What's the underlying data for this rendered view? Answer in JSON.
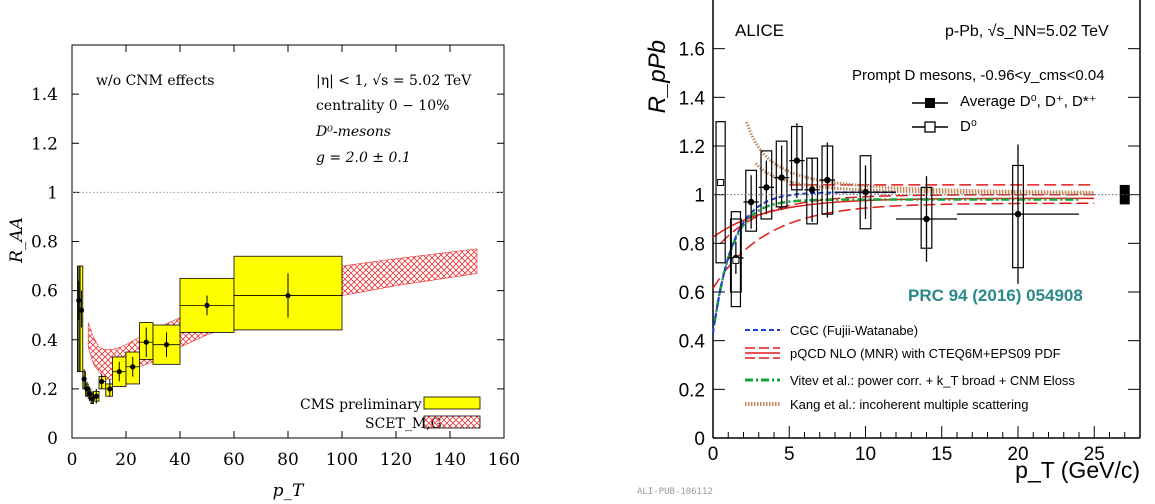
{
  "chart_data": [
    {
      "type": "scatter",
      "xlabel": "p_T",
      "ylabel": "R_AA",
      "xlim": [
        0,
        160
      ],
      "ylim": [
        0,
        1.6
      ],
      "xticks": [
        "0",
        "20",
        "40",
        "60",
        "80",
        "100",
        "120",
        "140",
        "160"
      ],
      "yticks": [
        "0",
        "0.2",
        "0.4",
        "0.6",
        "0.8",
        "1",
        "1.2",
        "1.4"
      ],
      "reference_line": 1.0,
      "annotations": {
        "left": "w/o CNM effects",
        "eta": "|η| < 1, √s = 5.02 TeV",
        "centrality": "centrality 0 − 10%",
        "species": "D⁰-mesons",
        "coupling": "g = 2.0 ± 0.1"
      },
      "legend": {
        "placement": "bottom-right",
        "items": [
          "CMS preliminary",
          "SCET_M,G"
        ]
      },
      "series": [
        {
          "name": "CMS preliminary",
          "color": "#ffff00",
          "points": [
            {
              "x": 2.5,
              "y": 0.56,
              "ylo": 0.48,
              "yhi": 0.64,
              "xlo": 2,
              "xhi": 3,
              "slo": 0.27,
              "shi": 0.7
            },
            {
              "x": 3.5,
              "y": 0.52,
              "ylo": 0.45,
              "yhi": 0.6,
              "xlo": 3,
              "xhi": 4,
              "slo": 0.27,
              "shi": 0.7
            },
            {
              "x": 4.5,
              "y": 0.24,
              "ylo": 0.2,
              "yhi": 0.28,
              "xlo": 4,
              "xhi": 5,
              "slo": 0.2,
              "shi": 0.27
            },
            {
              "x": 5.5,
              "y": 0.2,
              "ylo": 0.17,
              "yhi": 0.23,
              "xlo": 5,
              "xhi": 6,
              "slo": 0.17,
              "shi": 0.22
            },
            {
              "x": 6.5,
              "y": 0.18,
              "ylo": 0.15,
              "yhi": 0.21,
              "xlo": 6,
              "xhi": 7,
              "slo": 0.16,
              "shi": 0.2
            },
            {
              "x": 7.5,
              "y": 0.16,
              "ylo": 0.14,
              "yhi": 0.19,
              "xlo": 7,
              "xhi": 8,
              "slo": 0.14,
              "shi": 0.18
            },
            {
              "x": 9,
              "y": 0.17,
              "ylo": 0.14,
              "yhi": 0.2,
              "xlo": 8,
              "xhi": 10,
              "slo": 0.15,
              "shi": 0.19
            },
            {
              "x": 11,
              "y": 0.23,
              "ylo": 0.2,
              "yhi": 0.26,
              "xlo": 10,
              "xhi": 12.5,
              "slo": 0.2,
              "shi": 0.25
            },
            {
              "x": 14,
              "y": 0.2,
              "ylo": 0.17,
              "yhi": 0.24,
              "xlo": 12.5,
              "xhi": 15,
              "slo": 0.17,
              "shi": 0.22
            },
            {
              "x": 17.5,
              "y": 0.27,
              "ylo": 0.23,
              "yhi": 0.31,
              "xlo": 15,
              "xhi": 20,
              "slo": 0.21,
              "shi": 0.33
            },
            {
              "x": 22.5,
              "y": 0.29,
              "ylo": 0.25,
              "yhi": 0.33,
              "xlo": 20,
              "xhi": 25,
              "slo": 0.22,
              "shi": 0.35
            },
            {
              "x": 27.5,
              "y": 0.39,
              "ylo": 0.33,
              "yhi": 0.45,
              "xlo": 25,
              "xhi": 30,
              "slo": 0.32,
              "shi": 0.47
            },
            {
              "x": 35,
              "y": 0.38,
              "ylo": 0.33,
              "yhi": 0.43,
              "xlo": 30,
              "xhi": 40,
              "slo": 0.3,
              "shi": 0.46
            },
            {
              "x": 50,
              "y": 0.54,
              "ylo": 0.5,
              "yhi": 0.58,
              "xlo": 40,
              "xhi": 60,
              "slo": 0.43,
              "shi": 0.65
            },
            {
              "x": 80,
              "y": 0.58,
              "ylo": 0.49,
              "yhi": 0.67,
              "xlo": 60,
              "xhi": 100,
              "slo": 0.44,
              "shi": 0.74
            }
          ]
        },
        {
          "name": "SCET_M,G",
          "color": "#ee3333",
          "band_x": [
            6,
            8,
            10,
            12,
            15,
            18,
            20,
            25,
            30,
            40,
            50,
            60,
            80,
            100,
            120,
            150
          ],
          "band_lo": [
            0.37,
            0.3,
            0.27,
            0.24,
            0.24,
            0.25,
            0.26,
            0.29,
            0.31,
            0.37,
            0.42,
            0.46,
            0.53,
            0.58,
            0.62,
            0.67
          ],
          "band_hi": [
            0.47,
            0.41,
            0.37,
            0.36,
            0.36,
            0.37,
            0.38,
            0.41,
            0.44,
            0.49,
            0.55,
            0.59,
            0.66,
            0.7,
            0.73,
            0.77
          ]
        }
      ]
    },
    {
      "type": "scatter",
      "xlabel": "p_T (GeV/c)",
      "ylabel": "R_pPb",
      "xlim": [
        0,
        28
      ],
      "ylim": [
        0,
        1.8
      ],
      "xticks": [
        "0",
        "5",
        "10",
        "15",
        "20",
        "25"
      ],
      "yticks": [
        "0",
        "0.2",
        "0.4",
        "0.6",
        "0.8",
        "1",
        "1.2",
        "1.4",
        "1.6"
      ],
      "header_left": "ALICE",
      "header_right": "p-Pb, √s_NN=5.02 TeV",
      "legend_title": "Prompt D mesons, -0.96<y_cms<0.04",
      "reference": "PRC 94 (2016) 054908",
      "footer": "ALI-PUB-106112",
      "legend": {
        "placement": "top-right",
        "items": [
          "Average D⁰, D⁺, D*⁺",
          "D⁰"
        ]
      },
      "models": [
        "CGC (Fujii-Watanabe)",
        "pQCD NLO (MNR) with CTEQ6M+EPS09 PDF",
        "Vitev et al.: power corr. + k_T broad + CNM Eloss",
        "Kang et al.: incoherent multiple scattering"
      ],
      "colors": {
        "cgc": "#1f3fd6",
        "pqcd": "#e01b1b",
        "vitev": "#15a33a",
        "kang": "#c48a5e",
        "reference": "#2a8a85"
      },
      "series": [
        {
          "name": "Average D⁰, D⁺, D*⁺",
          "points": [
            {
              "x": 1.5,
              "y": 0.74,
              "e": 0.03
            },
            {
              "x": 2.5,
              "y": 0.97,
              "e": 0.05
            },
            {
              "x": 3.5,
              "y": 1.03,
              "e": 0.05
            },
            {
              "x": 4.5,
              "y": 1.07,
              "e": 0.06
            },
            {
              "x": 5.5,
              "y": 1.14,
              "e": 0.07
            },
            {
              "x": 6.5,
              "y": 1.02,
              "e": 0.06
            },
            {
              "x": 7.5,
              "y": 1.06,
              "e": 0.07
            },
            {
              "x": 10,
              "y": 1.01,
              "e": 0.05
            },
            {
              "x": 14,
              "y": 0.9,
              "e": 0.08
            },
            {
              "x": 20,
              "y": 0.92,
              "e": 0.13
            }
          ],
          "xbins": [
            [
              1,
              2
            ],
            [
              2,
              3
            ],
            [
              3,
              4
            ],
            [
              4,
              5
            ],
            [
              5,
              6
            ],
            [
              6,
              7
            ],
            [
              7,
              8
            ],
            [
              8,
              12
            ],
            [
              12,
              16
            ],
            [
              16,
              24
            ]
          ],
          "syst": [
            [
              0.6,
              0.9
            ],
            [
              0.85,
              1.1
            ],
            [
              0.9,
              1.18
            ],
            [
              0.95,
              1.22
            ],
            [
              1.02,
              1.28
            ],
            [
              0.88,
              1.15
            ],
            [
              0.92,
              1.2
            ],
            [
              0.86,
              1.16
            ],
            [
              0.78,
              1.03
            ],
            [
              0.7,
              1.12
            ]
          ]
        },
        {
          "name": "D⁰",
          "points": [
            {
              "x": 0.5,
              "y": 1.05,
              "lo": 0.72,
              "hi": 1.3
            },
            {
              "x": 1.5,
              "y": 0.73,
              "lo": 0.54,
              "hi": 0.93
            }
          ]
        }
      ],
      "global_unc": {
        "x": 27,
        "lo": 0.96,
        "hi": 1.04
      }
    }
  ]
}
